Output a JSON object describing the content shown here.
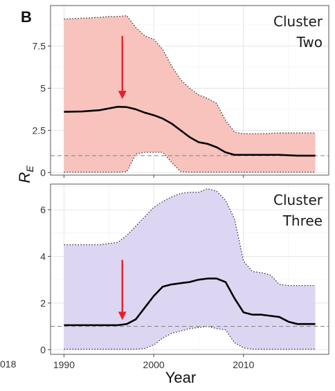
{
  "figure": {
    "panel_label": "B",
    "xlabel": "Year",
    "ylabel_main": "R",
    "ylabel_sub": "E",
    "edge_tick_label": "018",
    "edge_text_left": ""
  },
  "chart_data": [
    {
      "type": "line",
      "title": "Cluster Two",
      "title_lines": [
        "Cluster",
        "Two"
      ],
      "xlabel": "Year",
      "ylabel": "R_E",
      "xlim": [
        1988.5,
        2019.5
      ],
      "ylim": [
        -0.15,
        9.9
      ],
      "xticks": [
        1990,
        2000,
        2010
      ],
      "yticks": [
        0,
        2.5,
        5,
        7.5
      ],
      "ytick_labels": [
        "0",
        "2.5",
        "5",
        "7.5"
      ],
      "reference_line": 1,
      "band_color": "#f8c3bd",
      "arrow_color": "#e8202a",
      "arrow": {
        "x": 1996.5,
        "y_from": 8.1,
        "y_to": 4.6
      },
      "grid": true,
      "x": [
        1990,
        1992,
        1994,
        1995,
        1996,
        1997,
        1998,
        1999,
        2000,
        2001,
        2002,
        2003,
        2004,
        2005,
        2006,
        2007,
        2008,
        2009,
        2010,
        2012,
        2014,
        2016,
        2018
      ],
      "median": [
        3.6,
        3.62,
        3.7,
        3.8,
        3.9,
        3.88,
        3.75,
        3.55,
        3.4,
        3.2,
        2.9,
        2.5,
        2.1,
        1.8,
        1.7,
        1.5,
        1.2,
        1.05,
        1.05,
        1.05,
        1.05,
        1.0,
        1.0
      ],
      "upper": [
        9.1,
        9.15,
        9.2,
        9.25,
        9.25,
        9.3,
        8.6,
        8.1,
        7.9,
        7.3,
        6.3,
        5.5,
        5.0,
        4.6,
        4.4,
        4.1,
        3.1,
        2.4,
        2.3,
        2.3,
        2.35,
        2.35,
        2.35
      ],
      "lower": [
        0.02,
        0.02,
        0.02,
        0.02,
        0.02,
        0.05,
        1.1,
        1.2,
        1.2,
        1.2,
        0.6,
        0.05,
        0.02,
        0.02,
        0.02,
        0.02,
        0.02,
        0.02,
        0.02,
        0.02,
        0.02,
        0.02,
        0.02
      ]
    },
    {
      "type": "line",
      "title": "Cluster Three",
      "title_lines": [
        "Cluster",
        "Three"
      ],
      "xlabel": "Year",
      "ylabel": "R_E",
      "xlim": [
        1988.5,
        2019.5
      ],
      "ylim": [
        -0.2,
        7.1
      ],
      "xticks": [
        1990,
        2000,
        2010
      ],
      "yticks": [
        0,
        2,
        4,
        6
      ],
      "ytick_labels": [
        "0",
        "2",
        "4",
        "6"
      ],
      "reference_line": 1,
      "band_color": "#ddd6f3",
      "arrow_color": "#e8202a",
      "arrow": {
        "x": 1996.5,
        "y_from": 3.85,
        "y_to": 1.45
      },
      "grid": true,
      "x": [
        1990,
        1992,
        1994,
        1995,
        1996,
        1997,
        1998,
        1999,
        2000,
        2001,
        2002,
        2003,
        2004,
        2005,
        2006,
        2007,
        2008,
        2009,
        2010,
        2011,
        2012,
        2013,
        2014,
        2015,
        2016,
        2018
      ],
      "median": [
        1.05,
        1.05,
        1.05,
        1.05,
        1.05,
        1.1,
        1.3,
        1.8,
        2.3,
        2.7,
        2.8,
        2.85,
        2.9,
        3.0,
        3.05,
        3.05,
        2.9,
        2.2,
        1.6,
        1.5,
        1.5,
        1.45,
        1.4,
        1.2,
        1.1,
        1.1
      ],
      "upper": [
        4.5,
        4.5,
        4.5,
        4.55,
        4.6,
        4.9,
        5.3,
        5.7,
        6.1,
        6.35,
        6.55,
        6.7,
        6.75,
        6.75,
        6.9,
        6.8,
        6.4,
        5.6,
        3.8,
        3.35,
        3.3,
        3.2,
        2.8,
        2.75,
        2.75,
        2.75
      ],
      "lower": [
        0.02,
        0.02,
        0.02,
        0.02,
        0.02,
        0.02,
        0.02,
        0.05,
        0.2,
        0.5,
        0.7,
        0.8,
        0.9,
        0.95,
        1.0,
        0.9,
        0.85,
        0.3,
        0.08,
        0.02,
        0.02,
        0.02,
        0.02,
        0.02,
        0.02,
        0.02
      ]
    }
  ]
}
